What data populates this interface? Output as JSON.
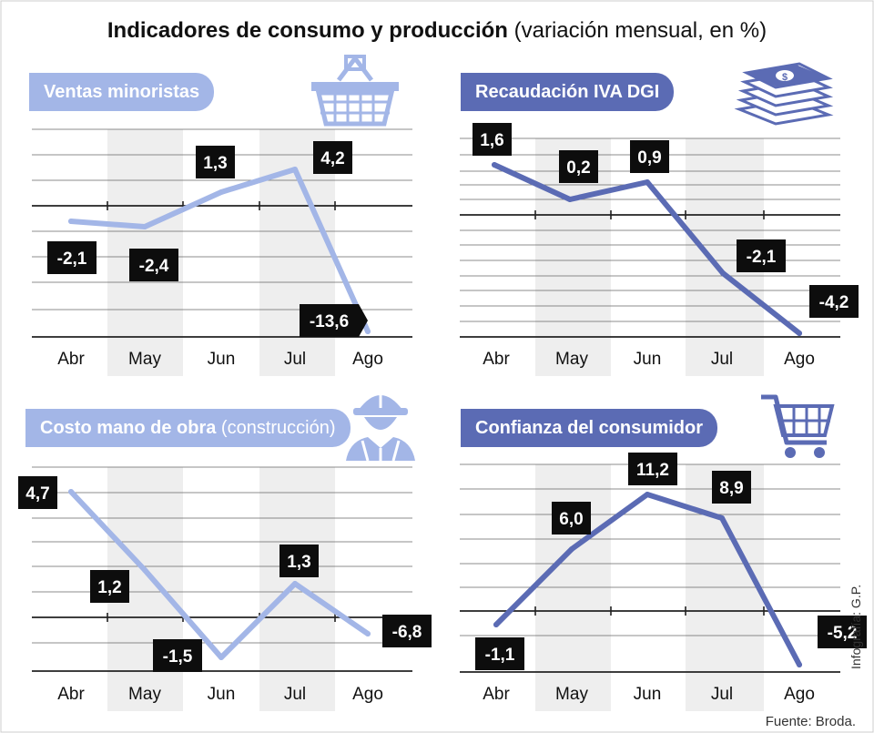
{
  "header": {
    "title_bold": "Indicadores de consumo y producción",
    "title_rest": "(variación mensual, en %)"
  },
  "footer": {
    "source": "Fuente: Broda.",
    "credit": "Infografía: G.P."
  },
  "colors": {
    "light": "#a3b6e7",
    "dark": "#5b6bb4",
    "band": "#eeeeee",
    "grid": "#222222",
    "label_bg": "#0d0d0d"
  },
  "chart_data": [
    {
      "id": "ventas",
      "type": "line",
      "title": "Ventas minoristas",
      "subtitle": "",
      "icon": "basket-icon",
      "color": "#a3b6e7",
      "categories": [
        "Abr",
        "May",
        "Jun",
        "Jul",
        "Ago"
      ],
      "series": [
        {
          "name": "Ventas minoristas",
          "values": [
            -2.1,
            -2.4,
            1.3,
            4.2,
            -13.6
          ]
        }
      ],
      "labels": [
        "-2,1",
        "-2,4",
        "1,3",
        "4,2",
        "-13,6"
      ],
      "ylim": [
        -14.2,
        8.6
      ],
      "zero_line": true
    },
    {
      "id": "iva",
      "type": "line",
      "title": "Recaudación IVA DGI",
      "subtitle": "",
      "icon": "money-stack-icon",
      "color": "#5b6bb4",
      "categories": [
        "Abr",
        "May",
        "Jun",
        "Jul",
        "Ago"
      ],
      "series": [
        {
          "name": "Recaudación IVA DGI",
          "values": [
            1.6,
            0.2,
            0.9,
            -2.1,
            -4.2
          ]
        }
      ],
      "labels": [
        "1,6",
        "0,2",
        "0,9",
        "-2,1",
        "-4,2"
      ],
      "ylim": [
        -4.3,
        3.1
      ],
      "zero_line": true
    },
    {
      "id": "costo",
      "type": "line",
      "title": "Costo mano de obra",
      "subtitle": "(construcción)",
      "icon": "worker-icon",
      "color": "#a3b6e7",
      "categories": [
        "Abr",
        "May",
        "Jun",
        "Jul",
        "Ago"
      ],
      "series": [
        {
          "name": "Costo mano de obra",
          "values": [
            4.7,
            1.2,
            -1.5,
            1.3,
            -6.8
          ]
        }
      ],
      "labels": [
        "4,7",
        "1,2",
        "-1,5",
        "1,3",
        "-6,8"
      ],
      "ylim": [
        -1.8,
        4.9
      ],
      "zero_line": true
    },
    {
      "id": "confianza",
      "type": "line",
      "title": "Confianza del consumidor",
      "subtitle": "",
      "icon": "cart-icon",
      "color": "#5b6bb4",
      "categories": [
        "Abr",
        "May",
        "Jun",
        "Jul",
        "Ago"
      ],
      "series": [
        {
          "name": "Confianza del consumidor",
          "values": [
            -1.1,
            6.0,
            11.2,
            8.9,
            -5.2
          ]
        }
      ],
      "labels": [
        "-1,1",
        "6,0",
        "11,2",
        "8,9",
        "-5,2"
      ],
      "ylim": [
        -6.5,
        16
      ],
      "zero_line": true
    }
  ]
}
